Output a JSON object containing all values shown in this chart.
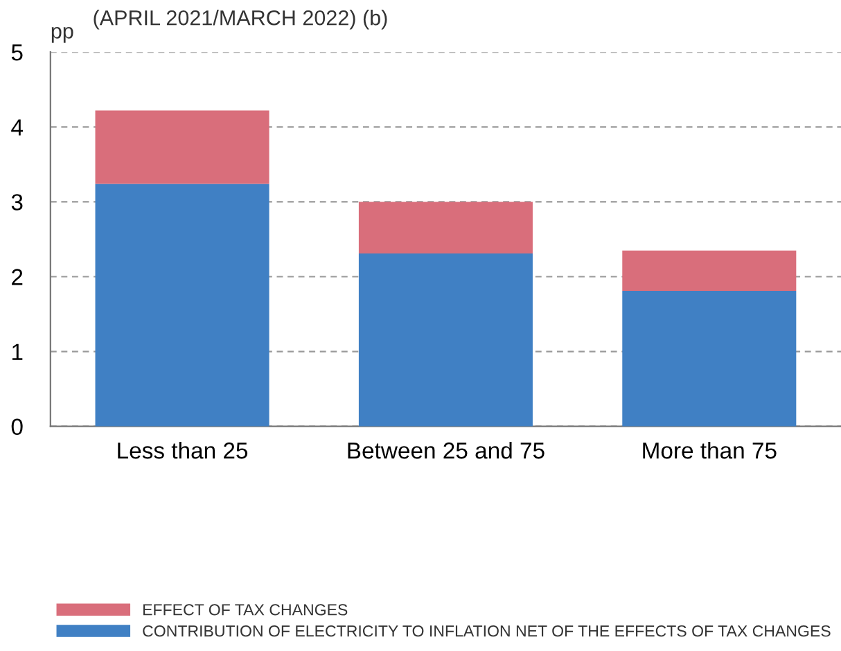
{
  "chart_data": {
    "type": "bar",
    "title": "(APRIL 2021/MARCH 2022) (b)",
    "ylabel": "pp",
    "stacked": true,
    "categories": [
      "Less than 25",
      "Between 25 and 75",
      "More than 75"
    ],
    "series": [
      {
        "name": "CONTRIBUTION OF ELECTRICITY TO INFLATION NET OF THE EFFECTS OF TAX CHANGES",
        "color": "#4080c4",
        "values": [
          3.24,
          2.31,
          1.81
        ]
      },
      {
        "name": "EFFECT OF TAX CHANGES",
        "color": "#d96e7b",
        "values": [
          0.98,
          0.69,
          0.54
        ]
      }
    ],
    "ylim": [
      0,
      5
    ],
    "yticks": [
      0,
      1,
      2,
      3,
      4,
      5
    ],
    "grid": "y",
    "legend": "bottom"
  }
}
